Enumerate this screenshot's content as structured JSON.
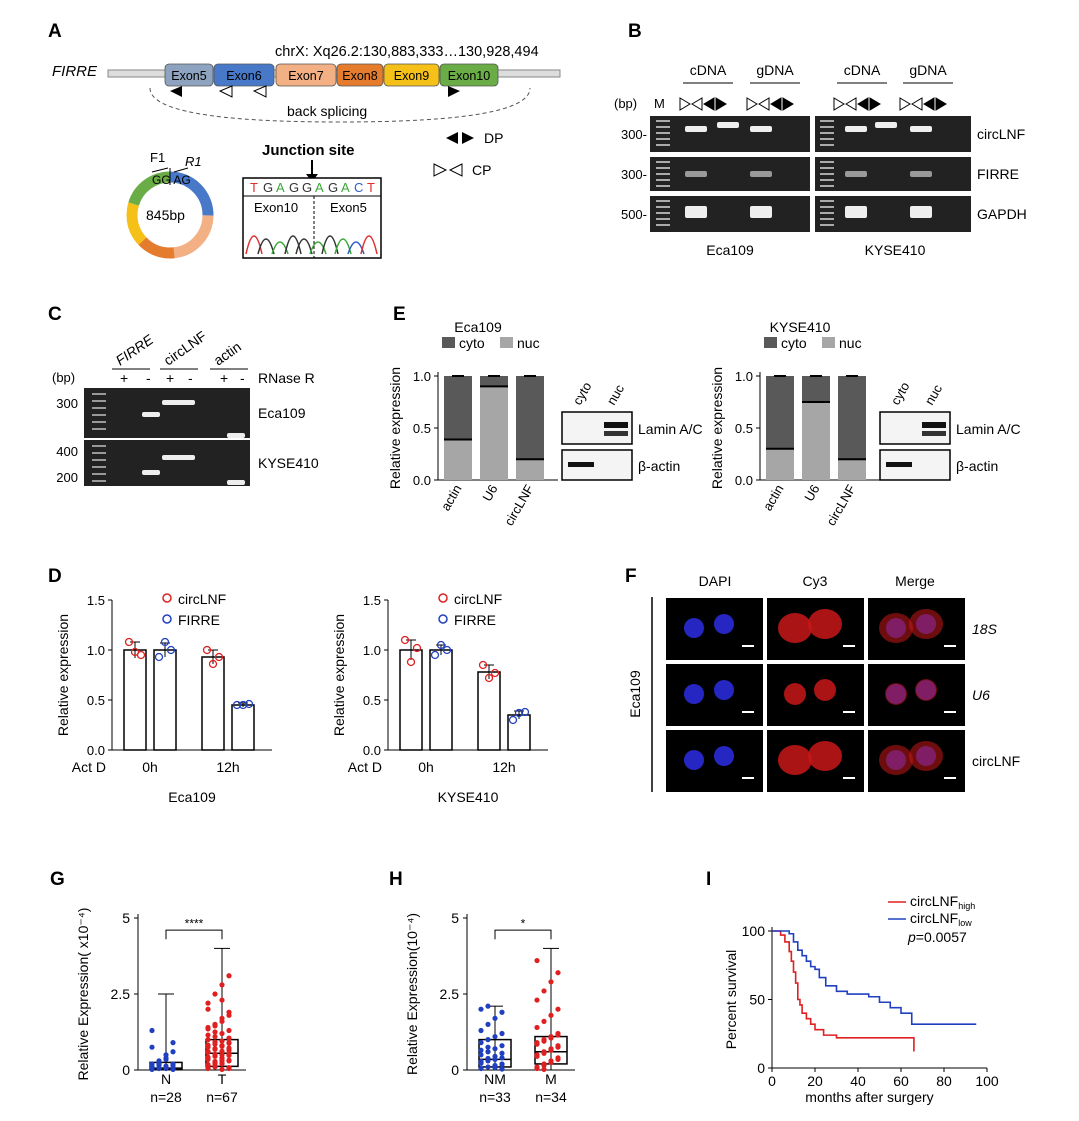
{
  "panels": {
    "A": "A",
    "B": "B",
    "C": "C",
    "D": "D",
    "E": "E",
    "F": "F",
    "G": "G",
    "H": "H",
    "I": "I"
  },
  "panelA": {
    "gene": "FIRRE",
    "locus": "chrX: Xq26.2:130,883,333…130,928,494",
    "exons": [
      {
        "label": "Exon5",
        "color": "#8ea3bf"
      },
      {
        "label": "Exon6",
        "color": "#4878c8"
      },
      {
        "label": "Exon7",
        "color": "#f2b084"
      },
      {
        "label": "Exon8",
        "color": "#e57b2c"
      },
      {
        "label": "Exon9",
        "color": "#f5c018"
      },
      {
        "label": "Exon10",
        "color": "#6aac46"
      }
    ],
    "back_splicing": "back splicing",
    "circle_size": "845bp",
    "primer_f": "F1",
    "primer_r": "R1",
    "junction_bases": "GG AG",
    "junction_title": "Junction site",
    "sequence": [
      "T",
      "G",
      "A",
      "G",
      "G",
      "A",
      "G",
      "A",
      "C",
      "T"
    ],
    "seq_left_exon": "Exon10",
    "seq_right_exon": "Exon5",
    "legend_dp": "DP",
    "legend_cp": "CP"
  },
  "panelB": {
    "groups": [
      "cDNA",
      "gDNA",
      "cDNA",
      "gDNA"
    ],
    "bp_label": "(bp)",
    "marker": "M",
    "row_labels": [
      "circLNF",
      "FIRRE",
      "GAPDH"
    ],
    "size_ticks": [
      "300-",
      "300-",
      "500-"
    ],
    "cell_lines": [
      "Eca109",
      "KYSE410"
    ]
  },
  "panelC": {
    "bp_label": "(bp)",
    "targets": [
      "FIRRE",
      "circLNF",
      "actin"
    ],
    "rnase": "RNase R",
    "signs": [
      "+",
      "-",
      "+",
      "-",
      "+",
      "-"
    ],
    "rows": [
      {
        "cell": "Eca109",
        "ticks": [
          "300"
        ]
      },
      {
        "cell": "KYSE410",
        "ticks": [
          "400",
          "200"
        ]
      }
    ]
  },
  "panelE": {
    "legend": [
      "cyto",
      "nuc"
    ],
    "ylabel": "Relative expression",
    "blot_cols": [
      "cyto",
      "nuc"
    ],
    "blot_rows": [
      "Lamin A/C",
      "β-actin"
    ]
  },
  "panelD": {
    "ylabel": "Relative expression",
    "treatment": "Act D",
    "timepoints": [
      "0h",
      "12h"
    ],
    "legend": [
      "circLNF",
      "FIRRE"
    ]
  },
  "panelF": {
    "columns": [
      "DAPI",
      "Cy3",
      "Merge"
    ],
    "rows": [
      "18S",
      "U6",
      "circLNF"
    ],
    "cell_line": "Eca109"
  },
  "panelG": {
    "ylabel": "Relative Expression( x10⁻⁴)",
    "groups": [
      "N",
      "T"
    ],
    "n": [
      "n=28",
      "n=67"
    ],
    "sig": "****"
  },
  "panelH": {
    "ylabel": "Relative Expression(10⁻⁴)",
    "groups": [
      "NM",
      "M"
    ],
    "n": [
      "n=33",
      "n=34"
    ],
    "sig": "*"
  },
  "panelI": {
    "ylabel": "Percent survival",
    "xlabel": "months after surgery",
    "legend": [
      "circLNF",
      "circLNF"
    ],
    "legend_sub": [
      "high",
      "low"
    ],
    "pvalue_prefix": "p",
    "pvalue": "=0.0057",
    "line_colors": [
      "#e02020",
      "#2040c0"
    ]
  },
  "chart_data": [
    {
      "type": "bar",
      "panel": "E-Eca109",
      "title": "Eca109",
      "categories": [
        "actin",
        "U6",
        "circLNF"
      ],
      "ylabel": "Relative expression",
      "ylim": [
        0,
        1.0
      ],
      "yticks": [
        "0.0",
        "0.5",
        "1.0"
      ],
      "stacked": true,
      "series": [
        {
          "name": "nuc",
          "values": [
            0.39,
            0.9,
            0.2
          ],
          "color": "#a6a6a6"
        },
        {
          "name": "cyto",
          "values": [
            0.61,
            0.1,
            0.8
          ],
          "color": "#595959"
        }
      ]
    },
    {
      "type": "bar",
      "panel": "E-KYSE410",
      "title": "KYSE410",
      "categories": [
        "actin",
        "U6",
        "circLNF"
      ],
      "ylabel": "Relative expression",
      "ylim": [
        0,
        1.0
      ],
      "yticks": [
        "0.0",
        "0.5",
        "1.0"
      ],
      "stacked": true,
      "series": [
        {
          "name": "nuc",
          "values": [
            0.3,
            0.75,
            0.2
          ],
          "color": "#a6a6a6"
        },
        {
          "name": "cyto",
          "values": [
            0.7,
            0.25,
            0.8
          ],
          "color": "#595959"
        }
      ]
    },
    {
      "type": "bar",
      "panel": "D-Eca109",
      "title": "Eca109",
      "categories": [
        "0h",
        "12h"
      ],
      "ylabel": "Relative expression",
      "ylim": [
        0,
        1.5
      ],
      "yticks": [
        "0.0",
        "0.5",
        "1.0",
        "1.5"
      ],
      "series": [
        {
          "name": "circLNF",
          "values": [
            1.0,
            0.93
          ],
          "errors": [
            0.08,
            0.07
          ],
          "points": [
            [
              1.08,
              0.98,
              0.95
            ],
            [
              1.0,
              0.86,
              0.93
            ]
          ],
          "color": "#e02020"
        },
        {
          "name": "FIRRE",
          "values": [
            1.0,
            0.45
          ],
          "errors": [
            0.07,
            0.02
          ],
          "points": [
            [
              0.93,
              1.08,
              1.0
            ],
            [
              0.45,
              0.45,
              0.46
            ]
          ],
          "color": "#2040c0"
        }
      ]
    },
    {
      "type": "bar",
      "panel": "D-KYSE410",
      "title": "KYSE410",
      "categories": [
        "0h",
        "12h"
      ],
      "ylabel": "Relative expression",
      "ylim": [
        0,
        1.5
      ],
      "yticks": [
        "0.0",
        "0.5",
        "1.0",
        "1.5"
      ],
      "series": [
        {
          "name": "circLNF",
          "values": [
            1.0,
            0.78
          ],
          "errors": [
            0.1,
            0.07
          ],
          "points": [
            [
              1.1,
              0.88,
              1.02
            ],
            [
              0.85,
              0.72,
              0.77
            ]
          ],
          "color": "#e02020"
        },
        {
          "name": "FIRRE",
          "values": [
            1.0,
            0.35
          ],
          "errors": [
            0.05,
            0.04
          ],
          "points": [
            [
              0.95,
              1.05,
              1.0
            ],
            [
              0.3,
              0.37,
              0.38
            ]
          ],
          "color": "#2040c0"
        }
      ]
    },
    {
      "type": "scatter",
      "panel": "G",
      "categories": [
        "N",
        "T"
      ],
      "ylabel": "Relative Expression( x10⁻⁴)",
      "ylim": [
        0,
        5
      ],
      "yticks": [
        "0",
        "2.5",
        "5"
      ],
      "box": [
        {
          "min": 0,
          "q1": 0.02,
          "median": 0.06,
          "q3": 0.25,
          "max": 2.5,
          "color": "#2040c0"
        },
        {
          "min": 0,
          "q1": 0.12,
          "median": 0.55,
          "q3": 1.0,
          "max": 4.0,
          "color": "#e02020"
        }
      ],
      "points": [
        [
          0.02,
          0.05,
          0.1,
          0.15,
          0.2,
          0.25,
          0.08,
          0.03,
          0.12,
          0.3,
          0.4,
          0.6,
          0.75,
          0.18,
          0.05,
          0.02,
          0.1,
          0.22,
          0.35,
          0.07,
          0.04,
          0.15,
          0.5,
          0.9,
          1.3,
          0.06,
          0.13,
          0.2
        ],
        [
          0.05,
          0.1,
          0.2,
          0.3,
          0.35,
          0.45,
          0.5,
          0.55,
          0.6,
          0.7,
          0.8,
          0.9,
          1.0,
          1.1,
          1.2,
          1.3,
          1.4,
          1.5,
          1.7,
          1.9,
          2.2,
          2.5,
          2.8,
          3.1,
          0.15,
          0.25,
          0.4,
          0.65,
          0.75,
          0.85,
          0.95,
          0.05,
          0.1,
          0.2,
          0.3,
          0.5,
          0.6,
          0.7,
          0.8,
          1.05,
          1.15,
          1.25,
          1.6,
          1.8,
          2.0,
          0.12,
          0.22,
          0.32,
          0.42,
          0.52,
          0.62,
          0.72,
          0.82,
          0.92,
          0.02,
          0.08,
          0.18,
          0.28,
          0.38,
          0.48,
          0.58,
          0.68,
          0.78,
          0.88,
          1.35,
          1.45,
          2.3
        ]
      ]
    },
    {
      "type": "scatter",
      "panel": "H",
      "categories": [
        "NM",
        "M"
      ],
      "ylabel": "Relative Expression(10⁻⁴)",
      "ylim": [
        0,
        5
      ],
      "yticks": [
        "0",
        "2.5",
        "5"
      ],
      "box": [
        {
          "min": 0,
          "q1": 0.1,
          "median": 0.35,
          "q3": 1.0,
          "max": 2.1,
          "color": "#2040c0"
        },
        {
          "min": 0,
          "q1": 0.2,
          "median": 0.6,
          "q3": 1.1,
          "max": 4.0,
          "color": "#e02020"
        }
      ],
      "points": [
        [
          0.05,
          0.1,
          0.15,
          0.2,
          0.25,
          0.3,
          0.35,
          0.4,
          0.5,
          0.6,
          0.7,
          0.8,
          0.9,
          1.0,
          1.1,
          1.2,
          1.3,
          1.5,
          1.7,
          1.9,
          2.0,
          2.1,
          0.12,
          0.18,
          0.28,
          0.38,
          0.45,
          0.55,
          0.65,
          0.75,
          0.08,
          0.03,
          0.22
        ],
        [
          0.1,
          0.2,
          0.3,
          0.4,
          0.5,
          0.6,
          0.7,
          0.8,
          0.9,
          1.0,
          1.1,
          1.2,
          1.4,
          1.6,
          1.8,
          2.0,
          2.3,
          2.6,
          2.9,
          3.2,
          3.6,
          0.15,
          0.25,
          0.35,
          0.45,
          0.55,
          0.65,
          0.75,
          0.85,
          0.95,
          1.05,
          1.15,
          0.05,
          0.02
        ]
      ]
    },
    {
      "type": "line",
      "panel": "I",
      "xlabel": "months after surgery",
      "ylabel": "Percent survival",
      "xlim": [
        0,
        100
      ],
      "ylim": [
        0,
        100
      ],
      "xticks": [
        "0",
        "20",
        "40",
        "60",
        "80",
        "100"
      ],
      "yticks": [
        "0",
        "50",
        "100"
      ],
      "series": [
        {
          "name": "circLNF high",
          "step": true,
          "color": "#e02020",
          "x": [
            0,
            4,
            6,
            8,
            9,
            10,
            11,
            12,
            13,
            14,
            16,
            18,
            20,
            24,
            30,
            35,
            40,
            65,
            66
          ],
          "y": [
            100,
            97,
            92,
            85,
            78,
            70,
            62,
            50,
            46,
            40,
            36,
            32,
            28,
            24,
            22,
            22,
            22,
            22,
            12
          ]
        },
        {
          "name": "circLNF low",
          "step": true,
          "color": "#2040c0",
          "x": [
            0,
            8,
            10,
            12,
            14,
            16,
            18,
            20,
            22,
            25,
            30,
            35,
            40,
            45,
            50,
            55,
            60,
            65,
            70,
            95
          ],
          "y": [
            100,
            98,
            92,
            86,
            82,
            78,
            74,
            72,
            66,
            60,
            56,
            54,
            54,
            52,
            48,
            44,
            40,
            32,
            32,
            32
          ]
        }
      ]
    }
  ]
}
